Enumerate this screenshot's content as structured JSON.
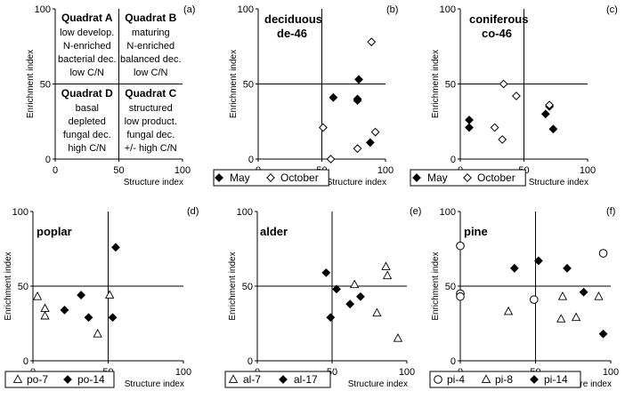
{
  "figure": {
    "panels": [
      {
        "id": "a",
        "label": "(a)",
        "kind": "quadrants",
        "ylabel": "Enrichment index",
        "xlabel": "Structure index",
        "xticks": [
          "0",
          "50",
          "100"
        ],
        "yticks": [
          "0",
          "50",
          "100"
        ],
        "quadrats": [
          {
            "name": "Quadrat A",
            "lines": [
              "low develop.",
              "N-enriched",
              "bacterial dec.",
              "low C/N"
            ]
          },
          {
            "name": "Quadrat B",
            "lines": [
              "maturing",
              "N-enriched",
              "balanced dec.",
              "low C/N"
            ]
          },
          {
            "name": "Quadrat D",
            "lines": [
              "basal",
              "depleted",
              "fungal dec.",
              "high C/N"
            ]
          },
          {
            "name": "Quadrat C",
            "lines": [
              "structured",
              "low product.",
              "fungal dec.",
              "+/- high C/N"
            ]
          }
        ]
      },
      {
        "id": "b",
        "label": "(b)",
        "kind": "scatter",
        "title_lines": [
          "deciduous",
          "de-46"
        ],
        "ylabel": "Enrichment index",
        "xlabel": "Structure index",
        "xticks": [
          "0",
          "50",
          "100"
        ],
        "yticks": [
          "0",
          "50",
          "100"
        ],
        "legend": [
          "May",
          "October"
        ]
      },
      {
        "id": "c",
        "label": "(c)",
        "kind": "scatter",
        "title_lines": [
          "coniferous",
          "co-46"
        ],
        "ylabel": "Enrichment index",
        "xlabel": "Structure index",
        "xticks": [
          "0",
          "50",
          "100"
        ],
        "yticks": [
          "0",
          "50",
          "100"
        ],
        "legend": [
          "May",
          "October"
        ]
      },
      {
        "id": "d",
        "label": "(d)",
        "kind": "scatter",
        "title_lines": [
          "poplar"
        ],
        "ylabel": "Enrichment index",
        "xlabel": "Structure index",
        "xticks": [
          "0",
          "50",
          "100"
        ],
        "yticks": [
          "0",
          "50",
          "100"
        ],
        "legend": [
          "po-7",
          "po-14"
        ]
      },
      {
        "id": "e",
        "label": "(e)",
        "kind": "scatter",
        "title_lines": [
          "alder"
        ],
        "ylabel": "Enrichment index",
        "xlabel": "Structure index",
        "xticks": [
          "0",
          "50",
          "100"
        ],
        "yticks": [
          "0",
          "50",
          "100"
        ],
        "legend": [
          "al-7",
          "al-17"
        ]
      },
      {
        "id": "f",
        "label": "(f)",
        "kind": "scatter",
        "title_lines": [
          "pine"
        ],
        "ylabel": "Enrichment index",
        "xlabel": "Structure index",
        "xticks": [
          "0",
          "50",
          "100"
        ],
        "yticks": [
          "0",
          "50",
          "100"
        ],
        "legend": [
          "pi-4",
          "pi-8",
          "pi-14"
        ]
      }
    ]
  },
  "chart_data": [
    {
      "panel": "b",
      "type": "scatter",
      "title": "deciduous de-46",
      "xlabel": "Structure index",
      "ylabel": "Enrichment index",
      "xlim": [
        0,
        100
      ],
      "ylim": [
        0,
        100
      ],
      "grid": false,
      "reference_lines": {
        "x": 50,
        "y": 50
      },
      "legend_position": "bottom",
      "series": [
        {
          "name": "May",
          "marker": "filled-diamond",
          "points": [
            [
              59,
              41
            ],
            [
              78,
              40
            ],
            [
              78,
              39
            ],
            [
              79,
              53
            ],
            [
              88,
              11
            ]
          ]
        },
        {
          "name": "October",
          "marker": "open-diamond",
          "points": [
            [
              51,
              21
            ],
            [
              57,
              0
            ],
            [
              78,
              7
            ],
            [
              89,
              78
            ],
            [
              92,
              18
            ]
          ]
        }
      ]
    },
    {
      "panel": "c",
      "type": "scatter",
      "title": "coniferous co-46",
      "xlabel": "Structure index",
      "ylabel": "Enrichment index",
      "xlim": [
        0,
        100
      ],
      "ylim": [
        0,
        100
      ],
      "grid": false,
      "reference_lines": {
        "x": 50,
        "y": 50
      },
      "legend_position": "bottom",
      "series": [
        {
          "name": "May",
          "marker": "filled-diamond",
          "points": [
            [
              7,
              26
            ],
            [
              7,
              21
            ],
            [
              67,
              30
            ],
            [
              70,
              35
            ],
            [
              73,
              20
            ]
          ]
        },
        {
          "name": "October",
          "marker": "open-diamond",
          "points": [
            [
              27,
              21
            ],
            [
              33,
              13
            ],
            [
              34,
              50
            ],
            [
              44,
              42
            ],
            [
              70,
              36
            ]
          ]
        }
      ]
    },
    {
      "panel": "d",
      "type": "scatter",
      "title": "poplar",
      "xlabel": "Structure index",
      "ylabel": "Enrichment index",
      "xlim": [
        0,
        100
      ],
      "ylim": [
        0,
        100
      ],
      "grid": false,
      "reference_lines": {
        "x": 50,
        "y": 50
      },
      "legend_position": "bottom",
      "series": [
        {
          "name": "po-7",
          "marker": "open-triangle",
          "points": [
            [
              3,
              43
            ],
            [
              8,
              35
            ],
            [
              8,
              30
            ],
            [
              43,
              18
            ],
            [
              51,
              44
            ]
          ]
        },
        {
          "name": "po-14",
          "marker": "filled-diamond",
          "points": [
            [
              21,
              34
            ],
            [
              32,
              44
            ],
            [
              37,
              29
            ],
            [
              53,
              29
            ],
            [
              55,
              76
            ]
          ]
        }
      ]
    },
    {
      "panel": "e",
      "type": "scatter",
      "title": "alder",
      "xlabel": "Structure index",
      "ylabel": "Enrichment index",
      "xlim": [
        0,
        100
      ],
      "ylim": [
        0,
        100
      ],
      "grid": false,
      "reference_lines": {
        "x": 50,
        "y": 50
      },
      "legend_position": "bottom",
      "series": [
        {
          "name": "al-7",
          "marker": "open-triangle",
          "points": [
            [
              65,
              51
            ],
            [
              80,
              32
            ],
            [
              86,
              63
            ],
            [
              87,
              57
            ],
            [
              94,
              15
            ]
          ]
        },
        {
          "name": "al-17",
          "marker": "filled-diamond",
          "points": [
            [
              46,
              59
            ],
            [
              49,
              29
            ],
            [
              53,
              48
            ],
            [
              62,
              38
            ],
            [
              69,
              43
            ]
          ]
        }
      ]
    },
    {
      "panel": "f",
      "type": "scatter",
      "title": "pine",
      "xlabel": "Structure index",
      "ylabel": "Enrichment index",
      "xlim": [
        0,
        100
      ],
      "ylim": [
        0,
        100
      ],
      "grid": false,
      "reference_lines": {
        "x": 50,
        "y": 50
      },
      "legend_position": "bottom",
      "series": [
        {
          "name": "pi-4",
          "marker": "open-circle",
          "points": [
            [
              0,
              77
            ],
            [
              0,
              45
            ],
            [
              0,
              43
            ],
            [
              49,
              41
            ],
            [
              95,
              72
            ]
          ]
        },
        {
          "name": "pi-8",
          "marker": "open-triangle",
          "points": [
            [
              32,
              33
            ],
            [
              67,
              28
            ],
            [
              68,
              43
            ],
            [
              77,
              29
            ],
            [
              92,
              43
            ]
          ]
        },
        {
          "name": "pi-14",
          "marker": "filled-diamond",
          "points": [
            [
              36,
              62
            ],
            [
              52,
              67
            ],
            [
              71,
              62
            ],
            [
              82,
              46
            ],
            [
              95,
              18
            ]
          ]
        }
      ]
    }
  ]
}
